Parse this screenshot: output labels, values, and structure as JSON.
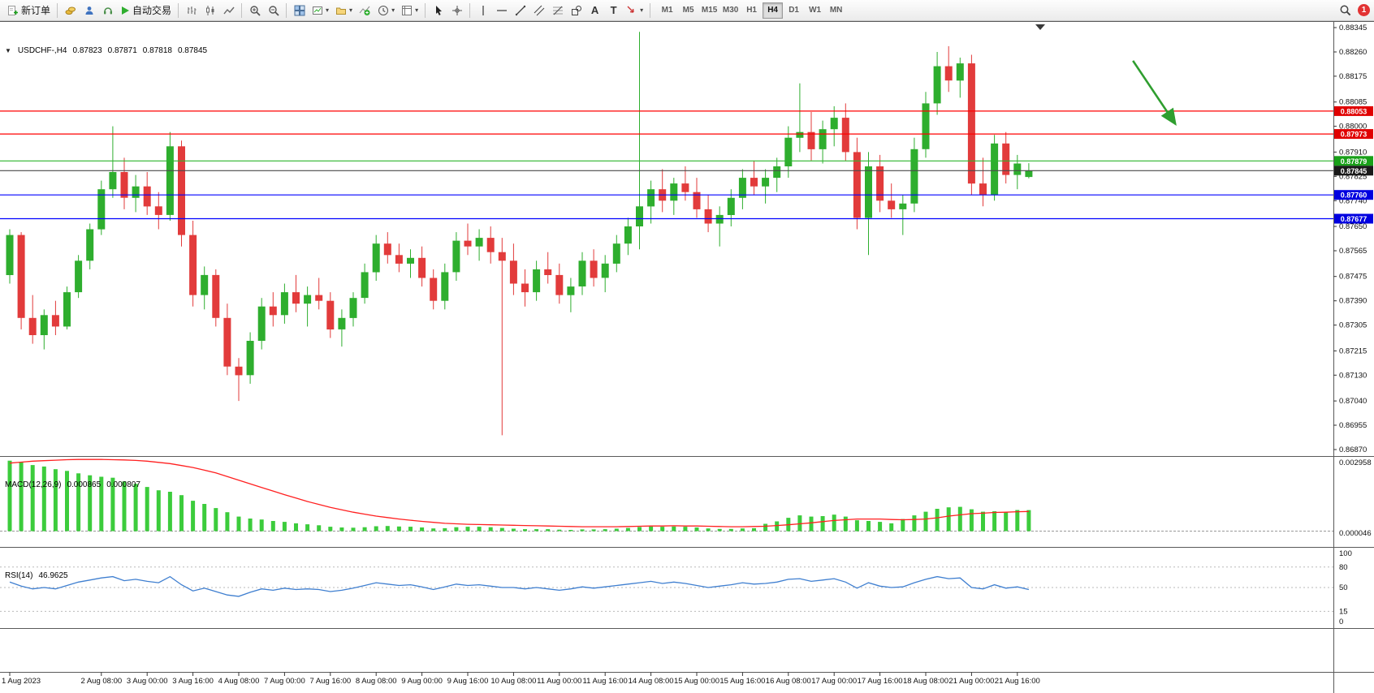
{
  "toolbar": {
    "new_order_label": "新订单",
    "auto_trading_label": "自动交易",
    "text_tool_glyph": "A",
    "text_label_tool_glyph": "T",
    "timeframes": [
      "M1",
      "M5",
      "M15",
      "M30",
      "H1",
      "H4",
      "D1",
      "W1",
      "MN"
    ],
    "active_timeframe": "H4",
    "notification_count": "1"
  },
  "chart_data": {
    "type": "candlestick",
    "title": "USDCHF-,H4",
    "symbol": "USDCHF-",
    "timeframe": "H4",
    "quote": {
      "open": "0.87823",
      "high": "0.87871",
      "low": "0.87818",
      "close": "0.87845"
    },
    "colors": {
      "up": "#2eae2e",
      "down": "#e23b3b",
      "macd_hist": "#3ccc3c",
      "macd_signal": "#ff2020",
      "rsi": "#3f7fd0"
    },
    "price_axis": {
      "max": 0.88345,
      "min": 0.8687,
      "ticks": [
        "0.88345",
        "0.88260",
        "0.88175",
        "0.88085",
        "0.88000",
        "0.87910",
        "0.87825",
        "0.87740",
        "0.87650",
        "0.87565",
        "0.87475",
        "0.87390",
        "0.87305",
        "0.87215",
        "0.87130",
        "0.87040",
        "0.86955",
        "0.86870"
      ]
    },
    "hlines": [
      {
        "price": 0.88053,
        "label": "0.88053",
        "color": "#ff0000",
        "tag_bg": "#e00000"
      },
      {
        "price": 0.87973,
        "label": "0.87973",
        "color": "#ff0000",
        "tag_bg": "#e00000"
      },
      {
        "price": 0.87879,
        "label": "0.87879",
        "color": "#2db52d",
        "tag_bg": "#18a018"
      },
      {
        "price": 0.8776,
        "label": "0.87760",
        "color": "#0000ff",
        "tag_bg": "#0000e0"
      },
      {
        "price": 0.87677,
        "label": "0.87677",
        "color": "#0000ff",
        "tag_bg": "#0000e0"
      }
    ],
    "current_price_line": {
      "price": 0.87845,
      "label": "0.87845",
      "color": "#4a4a4a",
      "tag_bg": "#1a1a1a"
    },
    "annotation_arrow": {
      "from_t": 98.1,
      "from_price": 0.88229,
      "to_t": 101.8,
      "to_price": 0.88008,
      "color": "#2f9e2f"
    },
    "time_axis": {
      "labels": [
        {
          "label": "1 Aug 2023",
          "i": 0
        },
        {
          "label": "2 Aug 08:00",
          "i": 8
        },
        {
          "label": "3 Aug 00:00",
          "i": 12
        },
        {
          "label": "3 Aug 16:00",
          "i": 16
        },
        {
          "label": "4 Aug 08:00",
          "i": 20
        },
        {
          "label": "7 Aug 00:00",
          "i": 24
        },
        {
          "label": "7 Aug 16:00",
          "i": 28
        },
        {
          "label": "8 Aug 08:00",
          "i": 32
        },
        {
          "label": "9 Aug 00:00",
          "i": 36
        },
        {
          "label": "9 Aug 16:00",
          "i": 40
        },
        {
          "label": "10 Aug 08:00",
          "i": 44
        },
        {
          "label": "11 Aug 00:00",
          "i": 48
        },
        {
          "label": "11 Aug 16:00",
          "i": 52
        },
        {
          "label": "14 Aug 08:00",
          "i": 56
        },
        {
          "label": "15 Aug 00:00",
          "i": 60
        },
        {
          "label": "15 Aug 16:00",
          "i": 64
        },
        {
          "label": "16 Aug 08:00",
          "i": 68
        },
        {
          "label": "17 Aug 00:00",
          "i": 72
        },
        {
          "label": "17 Aug 16:00",
          "i": 76
        },
        {
          "label": "18 Aug 08:00",
          "i": 80
        },
        {
          "label": "21 Aug 00:00",
          "i": 84
        },
        {
          "label": "21 Aug 16:00",
          "i": 88
        }
      ]
    },
    "candles_ohlc": [
      [
        0.8748,
        0.8764,
        0.8745,
        0.8762
      ],
      [
        0.8762,
        0.8763,
        0.8729,
        0.8733
      ],
      [
        0.8733,
        0.8741,
        0.8724,
        0.8727
      ],
      [
        0.8727,
        0.8736,
        0.8722,
        0.8734
      ],
      [
        0.8734,
        0.8739,
        0.8727,
        0.873
      ],
      [
        0.873,
        0.8744,
        0.8729,
        0.8742
      ],
      [
        0.8742,
        0.8755,
        0.874,
        0.8753
      ],
      [
        0.8753,
        0.8766,
        0.875,
        0.8764
      ],
      [
        0.8764,
        0.8781,
        0.8762,
        0.8778
      ],
      [
        0.8778,
        0.88,
        0.8775,
        0.8784
      ],
      [
        0.8784,
        0.8789,
        0.8771,
        0.8775
      ],
      [
        0.8775,
        0.8783,
        0.877,
        0.8779
      ],
      [
        0.8779,
        0.8784,
        0.8769,
        0.8772
      ],
      [
        0.8772,
        0.8777,
        0.8764,
        0.8769
      ],
      [
        0.8769,
        0.8798,
        0.8767,
        0.8793
      ],
      [
        0.8793,
        0.8795,
        0.8758,
        0.8762
      ],
      [
        0.8762,
        0.8767,
        0.8737,
        0.8741
      ],
      [
        0.8741,
        0.8751,
        0.8736,
        0.8748
      ],
      [
        0.8748,
        0.875,
        0.873,
        0.8733
      ],
      [
        0.8733,
        0.8738,
        0.8713,
        0.8716
      ],
      [
        0.8716,
        0.8719,
        0.8704,
        0.8713
      ],
      [
        0.8713,
        0.8728,
        0.871,
        0.8725
      ],
      [
        0.8725,
        0.874,
        0.8722,
        0.8737
      ],
      [
        0.8737,
        0.8742,
        0.873,
        0.8734
      ],
      [
        0.8734,
        0.8745,
        0.8731,
        0.8742
      ],
      [
        0.8742,
        0.8748,
        0.8735,
        0.8738
      ],
      [
        0.8738,
        0.8744,
        0.873,
        0.8741
      ],
      [
        0.8741,
        0.8747,
        0.8736,
        0.8739
      ],
      [
        0.8739,
        0.8742,
        0.8726,
        0.8729
      ],
      [
        0.8729,
        0.8736,
        0.8723,
        0.8733
      ],
      [
        0.8733,
        0.8742,
        0.873,
        0.874
      ],
      [
        0.874,
        0.8752,
        0.8738,
        0.8749
      ],
      [
        0.8749,
        0.8762,
        0.8746,
        0.8759
      ],
      [
        0.8759,
        0.8763,
        0.8752,
        0.8755
      ],
      [
        0.8755,
        0.8759,
        0.8749,
        0.8752
      ],
      [
        0.8752,
        0.8757,
        0.8747,
        0.8754
      ],
      [
        0.8754,
        0.8758,
        0.8744,
        0.8747
      ],
      [
        0.8747,
        0.875,
        0.8736,
        0.8739
      ],
      [
        0.8739,
        0.8752,
        0.8736,
        0.8749
      ],
      [
        0.8749,
        0.8763,
        0.8746,
        0.876
      ],
      [
        0.876,
        0.8766,
        0.8755,
        0.8758
      ],
      [
        0.8758,
        0.8764,
        0.8753,
        0.8761
      ],
      [
        0.8761,
        0.8765,
        0.8752,
        0.8756
      ],
      [
        0.8756,
        0.8761,
        0.8692,
        0.8753
      ],
      [
        0.8753,
        0.8759,
        0.8741,
        0.8745
      ],
      [
        0.8745,
        0.875,
        0.8737,
        0.8742
      ],
      [
        0.8742,
        0.8753,
        0.8739,
        0.875
      ],
      [
        0.875,
        0.8756,
        0.8745,
        0.8748
      ],
      [
        0.8748,
        0.8752,
        0.8738,
        0.8741
      ],
      [
        0.8741,
        0.8747,
        0.8735,
        0.8744
      ],
      [
        0.8744,
        0.8756,
        0.8741,
        0.8753
      ],
      [
        0.8753,
        0.8757,
        0.8744,
        0.8747
      ],
      [
        0.8747,
        0.8755,
        0.8742,
        0.8752
      ],
      [
        0.8752,
        0.8762,
        0.8749,
        0.8759
      ],
      [
        0.8759,
        0.8768,
        0.8755,
        0.8765
      ],
      [
        0.8765,
        0.8833,
        0.8757,
        0.8772
      ],
      [
        0.8772,
        0.8781,
        0.8766,
        0.8778
      ],
      [
        0.8778,
        0.8785,
        0.877,
        0.8774
      ],
      [
        0.8774,
        0.8782,
        0.8769,
        0.878
      ],
      [
        0.878,
        0.8786,
        0.8774,
        0.8777
      ],
      [
        0.8777,
        0.8782,
        0.8768,
        0.8771
      ],
      [
        0.8771,
        0.8776,
        0.8763,
        0.8766
      ],
      [
        0.8766,
        0.8772,
        0.8758,
        0.8769
      ],
      [
        0.8769,
        0.8778,
        0.8765,
        0.8775
      ],
      [
        0.8775,
        0.8785,
        0.8771,
        0.8782
      ],
      [
        0.8782,
        0.8788,
        0.8776,
        0.8779
      ],
      [
        0.8779,
        0.8785,
        0.8773,
        0.8782
      ],
      [
        0.8782,
        0.8789,
        0.8777,
        0.8786
      ],
      [
        0.8786,
        0.88,
        0.8782,
        0.8796
      ],
      [
        0.8796,
        0.8815,
        0.8791,
        0.8798
      ],
      [
        0.8798,
        0.8805,
        0.8788,
        0.8792
      ],
      [
        0.8792,
        0.8802,
        0.8787,
        0.8799
      ],
      [
        0.8799,
        0.8807,
        0.8793,
        0.8803
      ],
      [
        0.8803,
        0.8808,
        0.8788,
        0.8791
      ],
      [
        0.8791,
        0.8796,
        0.8764,
        0.8768
      ],
      [
        0.8768,
        0.8791,
        0.8755,
        0.8786
      ],
      [
        0.8786,
        0.879,
        0.877,
        0.8774
      ],
      [
        0.8774,
        0.878,
        0.8768,
        0.8771
      ],
      [
        0.8771,
        0.8776,
        0.8762,
        0.8773
      ],
      [
        0.8773,
        0.8796,
        0.877,
        0.8792
      ],
      [
        0.8792,
        0.8812,
        0.8789,
        0.8808
      ],
      [
        0.8808,
        0.8826,
        0.8804,
        0.8821
      ],
      [
        0.8821,
        0.8828,
        0.8812,
        0.8816
      ],
      [
        0.8816,
        0.8824,
        0.881,
        0.8822
      ],
      [
        0.8822,
        0.8825,
        0.8776,
        0.878
      ],
      [
        0.878,
        0.8789,
        0.8772,
        0.8776
      ],
      [
        0.8776,
        0.8797,
        0.8774,
        0.8794
      ],
      [
        0.8794,
        0.8798,
        0.878,
        0.8783
      ],
      [
        0.8783,
        0.879,
        0.8778,
        0.8787
      ],
      [
        0.87823,
        0.87871,
        0.87818,
        0.87845
      ]
    ],
    "macd": {
      "name": "MACD(12,26,9)",
      "main_value": "0.000865",
      "signal_value": "0.000807",
      "axis_top": "0.002958",
      "axis_bottom": "0.000046",
      "max": 0.002958,
      "min": -0.00025,
      "value_scale": 1e-05,
      "hist_x1e5": [
        290,
        285,
        272,
        266,
        255,
        248,
        238,
        230,
        224,
        220,
        205,
        195,
        182,
        168,
        162,
        148,
        125,
        112,
        95,
        78,
        60,
        52,
        48,
        42,
        38,
        32,
        28,
        24,
        18,
        15,
        14,
        16,
        20,
        21,
        19,
        18,
        15,
        11,
        12,
        16,
        18,
        18,
        16,
        13,
        10,
        8,
        8,
        8,
        6,
        5,
        7,
        7,
        8,
        10,
        13,
        17,
        19,
        18,
        19,
        18,
        15,
        11,
        9,
        9,
        11,
        12,
        30,
        40,
        55,
        65,
        60,
        62,
        68,
        60,
        45,
        42,
        38,
        32,
        50,
        65,
        80,
        92,
        98,
        100,
        90,
        80,
        82,
        78,
        87,
        86.5
      ],
      "signal_x1e5": [
        280,
        284,
        288,
        290,
        292,
        294,
        295,
        295,
        295,
        294,
        293,
        291,
        288,
        283,
        278,
        270,
        262,
        251,
        240,
        225,
        210,
        195,
        180,
        165,
        150,
        136,
        122,
        110,
        98,
        88,
        78,
        70,
        62,
        56,
        50,
        45,
        40,
        36,
        32,
        30,
        28,
        27,
        26,
        25,
        24,
        23,
        22,
        21,
        20,
        19,
        18,
        18,
        18,
        18,
        19,
        20,
        21,
        21,
        22,
        21,
        21,
        20,
        19,
        18,
        18,
        19,
        20,
        23,
        26,
        30,
        34,
        39,
        44,
        47,
        50,
        50,
        50,
        48,
        47,
        48,
        50,
        55,
        62,
        67,
        72,
        74,
        77,
        78,
        80,
        81
      ]
    },
    "rsi": {
      "name": "RSI(14)",
      "value": "46.9625",
      "levels": [
        80,
        50,
        15
      ],
      "axis_labels": [
        "100",
        "80",
        "50",
        "15",
        "0"
      ],
      "series": [
        58,
        52,
        48,
        50,
        48,
        53,
        58,
        61,
        64,
        66,
        60,
        62,
        59,
        57,
        66,
        54,
        45,
        49,
        44,
        39,
        37,
        43,
        48,
        46,
        49,
        47,
        48,
        47,
        44,
        46,
        49,
        53,
        57,
        55,
        53,
        54,
        51,
        47,
        51,
        55,
        53,
        54,
        52,
        50,
        50,
        48,
        50,
        48,
        46,
        48,
        51,
        49,
        51,
        53,
        55,
        57,
        59,
        56,
        58,
        56,
        53,
        50,
        52,
        54,
        57,
        55,
        56,
        58,
        62,
        63,
        59,
        61,
        63,
        58,
        49,
        57,
        52,
        50,
        51,
        57,
        62,
        66,
        63,
        64,
        50,
        48,
        54,
        49,
        51,
        47
      ]
    }
  }
}
